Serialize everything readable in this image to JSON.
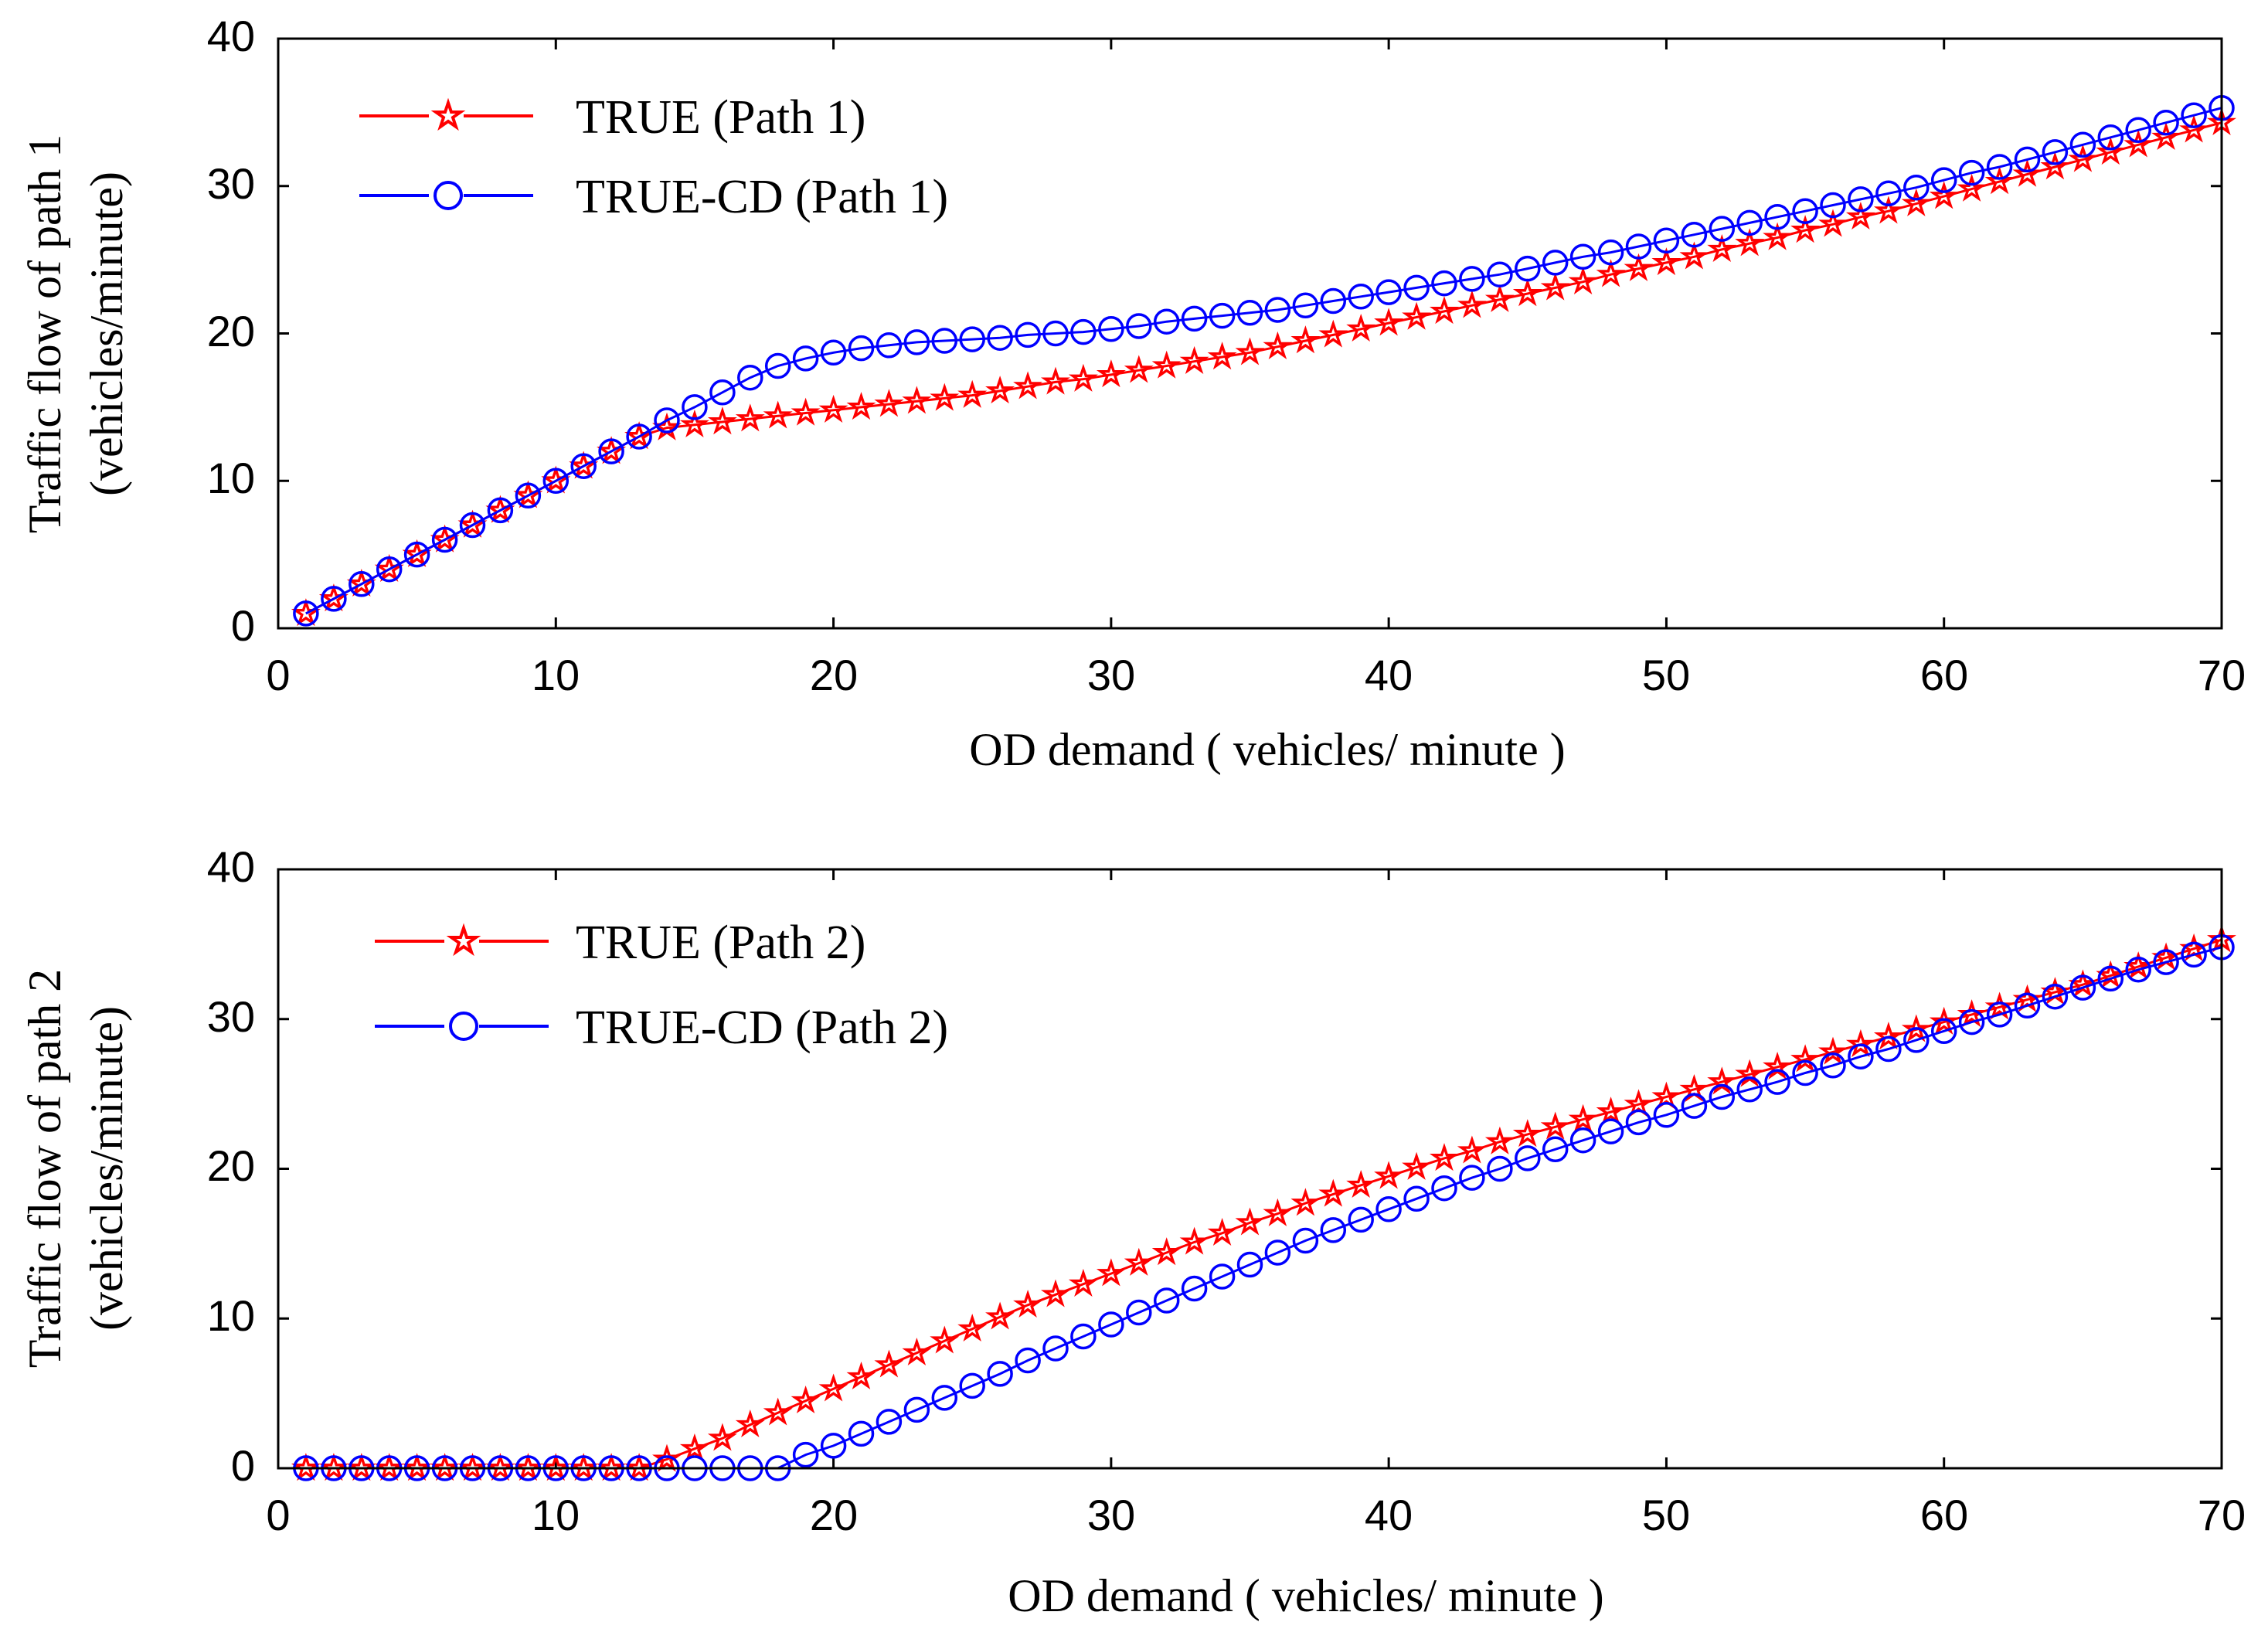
{
  "chart_data": [
    {
      "type": "line",
      "xlabel": "OD demand ( vehicles/ minute )",
      "ylabel_line1": "Traffic flow of path 1",
      "ylabel_line2": "(vehicles/minute)",
      "xlim": [
        0,
        70
      ],
      "ylim": [
        0,
        40
      ],
      "xticks": [
        0,
        10,
        20,
        30,
        40,
        50,
        60,
        70
      ],
      "yticks": [
        0,
        10,
        20,
        30,
        40
      ],
      "legend_position": "top-left",
      "series": [
        {
          "name": "TRUE  (Path 1)",
          "color": "#ff0000",
          "marker": "star",
          "x": [
            1,
            2,
            3,
            4,
            5,
            6,
            7,
            8,
            9,
            10,
            11,
            12,
            13,
            14,
            15,
            16,
            17,
            18,
            19,
            20,
            21,
            22,
            23,
            24,
            25,
            26,
            27,
            28,
            29,
            30,
            31,
            32,
            33,
            34,
            35,
            36,
            37,
            38,
            39,
            40,
            41,
            42,
            43,
            44,
            45,
            46,
            47,
            48,
            49,
            50,
            51,
            52,
            53,
            54,
            55,
            56,
            57,
            58,
            59,
            60,
            61,
            62,
            63,
            64,
            65,
            66,
            67,
            68,
            69,
            70
          ],
          "values": [
            1.0,
            2.0,
            3.0,
            4.0,
            5.0,
            6.0,
            7.0,
            8.0,
            9.0,
            10.0,
            11.0,
            12.0,
            13.0,
            13.6,
            13.8,
            14.0,
            14.2,
            14.4,
            14.6,
            14.8,
            15.0,
            15.2,
            15.4,
            15.6,
            15.8,
            16.1,
            16.4,
            16.7,
            16.9,
            17.2,
            17.5,
            17.8,
            18.1,
            18.4,
            18.7,
            19.1,
            19.5,
            19.9,
            20.3,
            20.7,
            21.1,
            21.5,
            21.9,
            22.3,
            22.7,
            23.1,
            23.5,
            24.0,
            24.4,
            24.8,
            25.2,
            25.7,
            26.1,
            26.5,
            27.0,
            27.4,
            27.9,
            28.3,
            28.8,
            29.3,
            29.8,
            30.3,
            30.8,
            31.3,
            31.8,
            32.3,
            32.8,
            33.3,
            33.8,
            34.3
          ]
        },
        {
          "name": "TRUE-CD  (Path 1)",
          "color": "#0000ff",
          "marker": "circle",
          "x": [
            1,
            2,
            3,
            4,
            5,
            6,
            7,
            8,
            9,
            10,
            11,
            12,
            13,
            14,
            15,
            16,
            17,
            18,
            19,
            20,
            21,
            22,
            23,
            24,
            25,
            26,
            27,
            28,
            29,
            30,
            31,
            32,
            33,
            34,
            35,
            36,
            37,
            38,
            39,
            40,
            41,
            42,
            43,
            44,
            45,
            46,
            47,
            48,
            49,
            50,
            51,
            52,
            53,
            54,
            55,
            56,
            57,
            58,
            59,
            60,
            61,
            62,
            63,
            64,
            65,
            66,
            67,
            68,
            69,
            70
          ],
          "values": [
            1.0,
            2.0,
            3.0,
            4.0,
            5.0,
            6.0,
            7.0,
            8.0,
            9.0,
            10.0,
            11.0,
            12.0,
            13.0,
            14.1,
            15.0,
            16.0,
            17.0,
            17.8,
            18.3,
            18.7,
            19.0,
            19.2,
            19.4,
            19.5,
            19.6,
            19.7,
            19.9,
            20.0,
            20.1,
            20.3,
            20.5,
            20.8,
            21.0,
            21.2,
            21.4,
            21.6,
            21.9,
            22.2,
            22.5,
            22.8,
            23.1,
            23.4,
            23.7,
            24.0,
            24.4,
            24.8,
            25.2,
            25.5,
            25.9,
            26.3,
            26.7,
            27.1,
            27.5,
            27.9,
            28.3,
            28.7,
            29.1,
            29.5,
            29.9,
            30.4,
            30.9,
            31.3,
            31.8,
            32.3,
            32.8,
            33.3,
            33.8,
            34.3,
            34.8,
            35.3
          ]
        }
      ]
    },
    {
      "type": "line",
      "xlabel": "OD demand ( vehicles/ minute )",
      "ylabel_line1": "Traffic flow of path 2",
      "ylabel_line2": "(vehicles/minute)",
      "xlim": [
        0,
        70
      ],
      "ylim": [
        0,
        40
      ],
      "xticks": [
        0,
        10,
        20,
        30,
        40,
        50,
        60,
        70
      ],
      "yticks": [
        0,
        10,
        20,
        30,
        40
      ],
      "legend_position": "top-left",
      "series": [
        {
          "name": "TRUE  (Path 2)",
          "color": "#ff0000",
          "marker": "star",
          "x": [
            1,
            2,
            3,
            4,
            5,
            6,
            7,
            8,
            9,
            10,
            11,
            12,
            13,
            14,
            15,
            16,
            17,
            18,
            19,
            20,
            21,
            22,
            23,
            24,
            25,
            26,
            27,
            28,
            29,
            30,
            31,
            32,
            33,
            34,
            35,
            36,
            37,
            38,
            39,
            40,
            41,
            42,
            43,
            44,
            45,
            46,
            47,
            48,
            49,
            50,
            51,
            52,
            53,
            54,
            55,
            56,
            57,
            58,
            59,
            60,
            61,
            62,
            63,
            64,
            65,
            66,
            67,
            68,
            69,
            70
          ],
          "values": [
            0,
            0,
            0,
            0,
            0,
            0,
            0,
            0,
            0,
            0,
            0,
            0,
            0,
            0.6,
            1.3,
            2.0,
            2.9,
            3.7,
            4.5,
            5.3,
            6.1,
            6.9,
            7.7,
            8.5,
            9.3,
            10.1,
            10.9,
            11.6,
            12.3,
            13.0,
            13.7,
            14.4,
            15.1,
            15.7,
            16.4,
            17.0,
            17.7,
            18.3,
            18.9,
            19.5,
            20.1,
            20.7,
            21.2,
            21.8,
            22.3,
            22.8,
            23.3,
            23.8,
            24.3,
            24.8,
            25.3,
            25.8,
            26.3,
            26.8,
            27.3,
            27.8,
            28.3,
            28.8,
            29.3,
            29.8,
            30.3,
            30.8,
            31.3,
            31.8,
            32.3,
            32.9,
            33.5,
            34.1,
            34.7,
            35.3
          ]
        },
        {
          "name": "TRUE-CD  (Path 2)",
          "color": "#0000ff",
          "marker": "circle",
          "x": [
            1,
            2,
            3,
            4,
            5,
            6,
            7,
            8,
            9,
            10,
            11,
            12,
            13,
            14,
            15,
            16,
            17,
            18,
            19,
            20,
            21,
            22,
            23,
            24,
            25,
            26,
            27,
            28,
            29,
            30,
            31,
            32,
            33,
            34,
            35,
            36,
            37,
            38,
            39,
            40,
            41,
            42,
            43,
            44,
            45,
            46,
            47,
            48,
            49,
            50,
            51,
            52,
            53,
            54,
            55,
            56,
            57,
            58,
            59,
            60,
            61,
            62,
            63,
            64,
            65,
            66,
            67,
            68,
            69,
            70
          ],
          "values": [
            0,
            0,
            0,
            0,
            0,
            0,
            0,
            0,
            0,
            0,
            0,
            0,
            0,
            0,
            0,
            0,
            0,
            0,
            0.9,
            1.5,
            2.3,
            3.1,
            3.9,
            4.7,
            5.5,
            6.3,
            7.2,
            8.0,
            8.8,
            9.6,
            10.4,
            11.2,
            12.0,
            12.8,
            13.6,
            14.4,
            15.2,
            15.9,
            16.6,
            17.3,
            18.0,
            18.7,
            19.4,
            20.0,
            20.7,
            21.3,
            21.9,
            22.5,
            23.1,
            23.6,
            24.2,
            24.8,
            25.3,
            25.8,
            26.4,
            26.9,
            27.5,
            28.0,
            28.6,
            29.2,
            29.8,
            30.3,
            30.9,
            31.5,
            32.1,
            32.7,
            33.3,
            33.8,
            34.3,
            34.8
          ]
        }
      ]
    }
  ]
}
